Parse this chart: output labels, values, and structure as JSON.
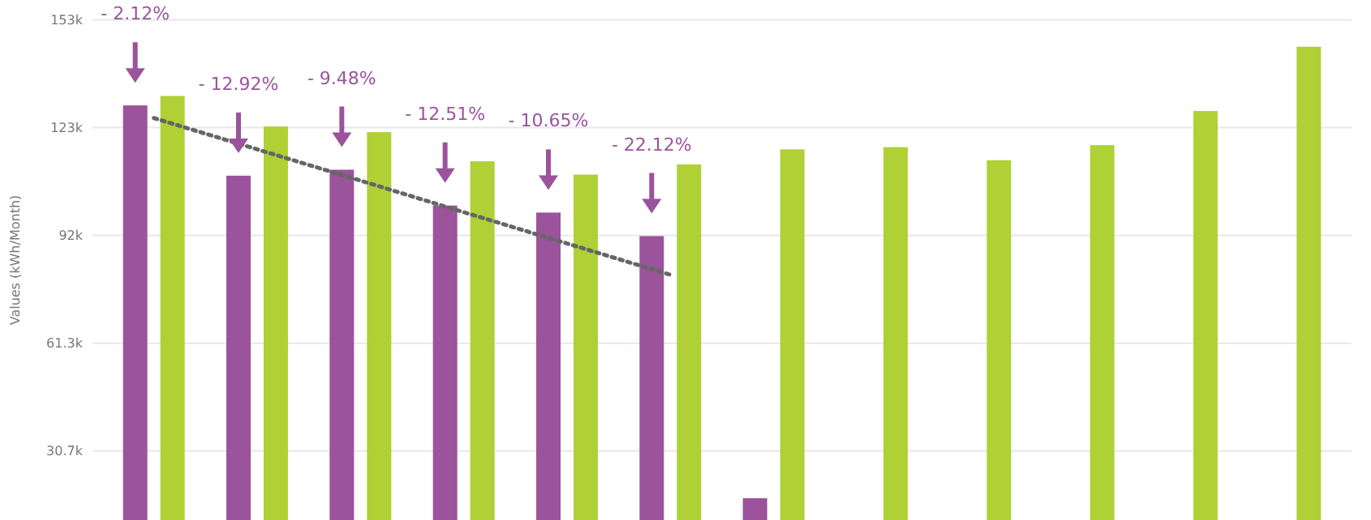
{
  "chart_data": {
    "type": "bar",
    "ylabel": "Values (kWh/Month)",
    "categories": [
      null,
      null,
      null,
      null,
      null,
      null,
      null,
      null,
      null,
      null,
      null,
      null
    ],
    "series": [
      {
        "color": "#9b539b",
        "values": [
          129000,
          109000,
          110700,
          100500,
          98500,
          91800,
          17200,
          null,
          null,
          null,
          null,
          null
        ]
      },
      {
        "color": "#afd135",
        "values": [
          131700,
          123000,
          121400,
          113100,
          109300,
          112200,
          116500,
          117100,
          113400,
          117700,
          127400,
          145700
        ]
      },
      {
        "type": "line",
        "color": "#666666",
        "line_style": "dotted",
        "values": [
          125400,
          116500,
          107600,
          98600,
          89700,
          80800,
          null,
          null,
          null,
          null,
          null,
          null
        ]
      }
    ],
    "ylim": [
      11000,
      159000
    ],
    "yticks": [
      {
        "value": 30667,
        "label": "30.7k"
      },
      {
        "value": 61333,
        "label": "61.3k"
      },
      {
        "value": 92000,
        "label": "92k"
      },
      {
        "value": 122667,
        "label": "123k"
      },
      {
        "value": 153333,
        "label": "153k"
      }
    ],
    "grid": "y",
    "annotations": [
      "- 2.12%",
      "- 12.92%",
      "- 9.48%",
      "- 12.51%",
      "- 10.65%",
      "- 22.12%"
    ]
  }
}
